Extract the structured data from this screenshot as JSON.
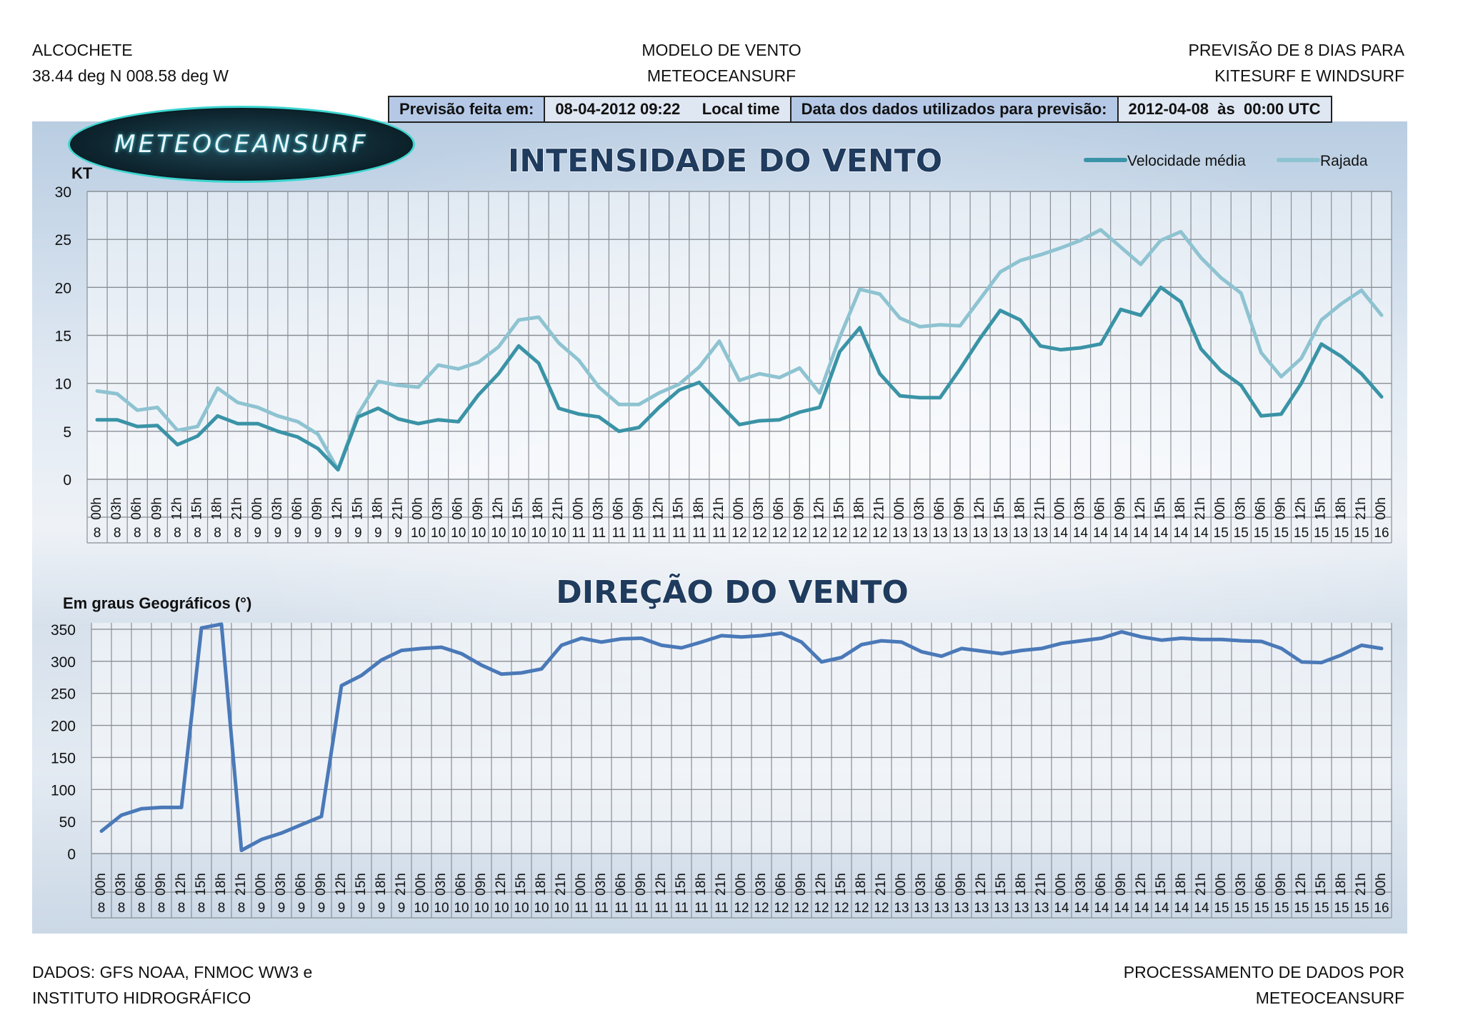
{
  "header": {
    "location": "ALCOCHETE",
    "coords": "38.44 deg N 008.58 deg W",
    "center_line1": "MODELO DE VENTO",
    "center_line2": "METEOCEANSURF",
    "right_line1": "PREVISÃO DE 8 DIAS PARA",
    "right_line2": "KITESURF E WINDSURF"
  },
  "info_bar": {
    "made_label": "Previsão feita em:",
    "made_value": "08-04-2012 09:22     Local time",
    "data_label": "Data dos dados utilizados para previsão:",
    "data_value": "2012-04-08  às  00:00 UTC"
  },
  "logo_text": "METEOCEANSURF",
  "footer": {
    "left_line1": "DADOS: GFS NOAA, FNMOC WW3 e",
    "left_line2": "INSTITUTO HIDROGRÁFICO",
    "right_line1": "PROCESSAMENTO DE DADOS POR",
    "right_line2": "METEOCEANSURF"
  },
  "chart_data": [
    {
      "type": "line",
      "title": "INTENSIDADE DO VENTO",
      "ylabel": "KT",
      "ylim": [
        0,
        30
      ],
      "yticks": [
        0,
        5,
        10,
        15,
        20,
        25,
        30
      ],
      "grid": true,
      "legend_position": "top-right",
      "hours": [
        "00h",
        "03h",
        "06h",
        "09h",
        "12h",
        "15h",
        "18h",
        "21h",
        "00h",
        "03h",
        "06h",
        "09h",
        "12h",
        "15h",
        "18h",
        "21h",
        "00h",
        "03h",
        "06h",
        "09h",
        "12h",
        "15h",
        "18h",
        "21h",
        "00h",
        "03h",
        "06h",
        "09h",
        "12h",
        "15h",
        "18h",
        "21h",
        "00h",
        "03h",
        "06h",
        "09h",
        "12h",
        "15h",
        "18h",
        "21h",
        "00h",
        "03h",
        "06h",
        "09h",
        "12h",
        "15h",
        "18h",
        "21h",
        "00h",
        "03h",
        "06h",
        "09h",
        "12h",
        "15h",
        "18h",
        "21h",
        "00h",
        "03h",
        "06h",
        "09h",
        "12h",
        "15h",
        "18h",
        "21h",
        "00h"
      ],
      "days": [
        "8",
        "8",
        "8",
        "8",
        "8",
        "8",
        "8",
        "8",
        "9",
        "9",
        "9",
        "9",
        "9",
        "9",
        "9",
        "9",
        "10",
        "10",
        "10",
        "10",
        "10",
        "10",
        "10",
        "10",
        "11",
        "11",
        "11",
        "11",
        "11",
        "11",
        "11",
        "11",
        "12",
        "12",
        "12",
        "12",
        "12",
        "12",
        "12",
        "12",
        "13",
        "13",
        "13",
        "13",
        "13",
        "13",
        "13",
        "13",
        "14",
        "14",
        "14",
        "14",
        "14",
        "14",
        "14",
        "14",
        "15",
        "15",
        "15",
        "15",
        "15",
        "15",
        "15",
        "15",
        "16"
      ],
      "series": [
        {
          "name": "Velocidade média",
          "color": "#3a93a6",
          "values": [
            6.2,
            6.2,
            5.5,
            5.6,
            3.6,
            4.5,
            6.6,
            5.8,
            5.8,
            5.0,
            4.4,
            3.2,
            1.0,
            6.5,
            7.4,
            6.3,
            5.8,
            6.2,
            6.0,
            8.8,
            11.0,
            13.9,
            12.1,
            7.4,
            6.8,
            6.5,
            5.0,
            5.4,
            7.5,
            9.3,
            10.1,
            7.9,
            5.7,
            6.1,
            6.2,
            7.0,
            7.5,
            13.3,
            15.8,
            11.0,
            8.7,
            8.5,
            8.5,
            11.5,
            14.7,
            17.6,
            16.6,
            13.9,
            13.5,
            13.7,
            14.1,
            17.7,
            17.1,
            20.0,
            18.5,
            13.6,
            11.3,
            9.8,
            6.6,
            6.8,
            10.0,
            14.1,
            12.8,
            11.0,
            8.6
          ]
        },
        {
          "name": "Rajada",
          "color": "#8ec3d1",
          "values": [
            9.2,
            8.9,
            7.2,
            7.5,
            5.1,
            5.5,
            9.5,
            8.0,
            7.5,
            6.6,
            6.0,
            4.7,
            1.0,
            6.8,
            10.2,
            9.8,
            9.6,
            11.9,
            11.5,
            12.2,
            13.8,
            16.6,
            16.9,
            14.2,
            12.4,
            9.6,
            7.8,
            7.8,
            9.0,
            9.9,
            11.7,
            14.4,
            10.3,
            11.0,
            10.6,
            11.6,
            9.0,
            14.8,
            19.8,
            19.3,
            16.8,
            15.9,
            16.1,
            16.0,
            18.8,
            21.6,
            22.8,
            23.4,
            24.1,
            24.9,
            26.0,
            24.2,
            22.4,
            24.9,
            25.8,
            23.1,
            21.0,
            19.4,
            13.2,
            10.7,
            12.6,
            16.6,
            18.3,
            19.7,
            17.1
          ]
        }
      ]
    },
    {
      "type": "line",
      "title": "DIREÇÃO DO VENTO",
      "ylabel": "Em graus Geográficos (°)",
      "ylim": [
        0,
        360
      ],
      "yticks": [
        0,
        50,
        100,
        150,
        200,
        250,
        300,
        350
      ],
      "grid": true,
      "hours": [
        "00h",
        "03h",
        "06h",
        "09h",
        "12h",
        "15h",
        "18h",
        "21h",
        "00h",
        "03h",
        "06h",
        "09h",
        "12h",
        "15h",
        "18h",
        "21h",
        "00h",
        "03h",
        "06h",
        "09h",
        "12h",
        "15h",
        "18h",
        "21h",
        "00h",
        "03h",
        "06h",
        "09h",
        "12h",
        "15h",
        "18h",
        "21h",
        "00h",
        "03h",
        "06h",
        "09h",
        "12h",
        "15h",
        "18h",
        "21h",
        "00h",
        "03h",
        "06h",
        "09h",
        "12h",
        "15h",
        "18h",
        "21h",
        "00h",
        "03h",
        "06h",
        "09h",
        "12h",
        "15h",
        "18h",
        "21h",
        "00h",
        "03h",
        "06h",
        "09h",
        "12h",
        "15h",
        "18h",
        "21h",
        "00h"
      ],
      "days": [
        "8",
        "8",
        "8",
        "8",
        "8",
        "8",
        "8",
        "8",
        "9",
        "9",
        "9",
        "9",
        "9",
        "9",
        "9",
        "9",
        "10",
        "10",
        "10",
        "10",
        "10",
        "10",
        "10",
        "10",
        "11",
        "11",
        "11",
        "11",
        "11",
        "11",
        "11",
        "11",
        "12",
        "12",
        "12",
        "12",
        "12",
        "12",
        "12",
        "12",
        "13",
        "13",
        "13",
        "13",
        "13",
        "13",
        "13",
        "13",
        "14",
        "14",
        "14",
        "14",
        "14",
        "14",
        "14",
        "14",
        "15",
        "15",
        "15",
        "15",
        "15",
        "15",
        "15",
        "15",
        "16"
      ],
      "series": [
        {
          "color": "#4a79b8",
          "values": [
            35,
            60,
            70,
            72,
            72,
            352,
            358,
            5,
            22,
            32,
            45,
            58,
            262,
            278,
            302,
            317,
            320,
            322,
            312,
            294,
            280,
            282,
            288,
            325,
            336,
            330,
            335,
            336,
            325,
            321,
            330,
            340,
            338,
            340,
            344,
            330,
            299,
            306,
            326,
            332,
            330,
            315,
            308,
            320,
            316,
            312,
            317,
            320,
            328,
            332,
            336,
            346,
            338,
            333,
            336,
            334,
            334,
            332,
            331,
            320,
            299,
            298,
            310,
            325,
            320
          ]
        }
      ]
    }
  ]
}
